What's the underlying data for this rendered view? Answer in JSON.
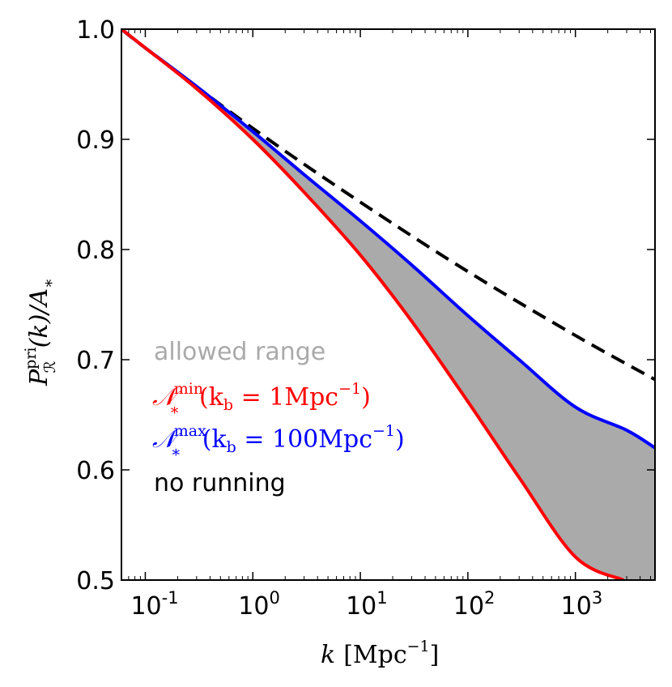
{
  "chart_data": {
    "type": "line",
    "xscale": "log",
    "xlim": [
      0.06,
      5500
    ],
    "ylim": [
      0.5,
      1.0
    ],
    "xlabel": {
      "italic": "k",
      "unit_main": "Mpc",
      "unit_exp": "−1"
    },
    "ylabel": {
      "P": "P",
      "sup": "pri",
      "sub": "ℛ",
      "rest": "(k)/A",
      "sub2": "∗"
    },
    "xticks": [
      {
        "value": 0.1,
        "base": "10",
        "exp": "-1"
      },
      {
        "value": 1,
        "base": "10",
        "exp": "0"
      },
      {
        "value": 10,
        "base": "10",
        "exp": "1"
      },
      {
        "value": 100,
        "base": "10",
        "exp": "2"
      },
      {
        "value": 1000,
        "base": "10",
        "exp": "3"
      }
    ],
    "yticks": [
      {
        "value": 0.5,
        "label": "0.5"
      },
      {
        "value": 0.6,
        "label": "0.6"
      },
      {
        "value": 0.7,
        "label": "0.7"
      },
      {
        "value": 0.8,
        "label": "0.8"
      },
      {
        "value": 0.9,
        "label": "0.9"
      },
      {
        "value": 1.0,
        "label": "1.0"
      }
    ],
    "series": [
      {
        "name": "no running",
        "color": "#000000",
        "style": "dashed",
        "x": [
          0.06,
          0.1,
          1,
          10,
          100,
          1000,
          5500
        ],
        "y": [
          1.0,
          0.983,
          0.91,
          0.843,
          0.78,
          0.722,
          0.682
        ]
      },
      {
        "name": "N_*^max (k_b = 100 Mpc^-1)",
        "color": "#0000ff",
        "style": "solid",
        "x": [
          0.06,
          0.1,
          0.3,
          1,
          3,
          10,
          30,
          100,
          300,
          1000,
          3000,
          5500
        ],
        "y": [
          1.0,
          0.983,
          0.948,
          0.907,
          0.868,
          0.826,
          0.786,
          0.74,
          0.7,
          0.657,
          0.636,
          0.62
        ]
      },
      {
        "name": "N_*^min (k_b = 1 Mpc^-1)",
        "color": "#ff0000",
        "style": "solid",
        "x": [
          0.06,
          0.1,
          0.3,
          1,
          3,
          10,
          30,
          100,
          300,
          1000,
          2800
        ],
        "y": [
          1.0,
          0.983,
          0.946,
          0.9,
          0.852,
          0.795,
          0.735,
          0.662,
          0.593,
          0.521,
          0.5
        ]
      }
    ],
    "shaded_region": {
      "label": "allowed range",
      "color": "#aaaaaa",
      "between": [
        "N_*^min (k_b = 1 Mpc^-1)",
        "N_*^max (k_b = 100 Mpc^-1)"
      ]
    },
    "legend": {
      "position": "center-left",
      "allowed_range": {
        "text": "allowed range",
        "color": "#aaaaaa"
      },
      "nmin": {
        "N": "𝒩",
        "sup": "min",
        "sub": "∗",
        "open": "(k",
        "b": "b",
        "mid": " = 1Mpc",
        "exp": "−1",
        "close": ")",
        "color": "#ff0000"
      },
      "nmax": {
        "N": "𝒩",
        "sup": "max",
        "sub": "∗",
        "open": "(k",
        "b": "b",
        "mid": " = 100Mpc",
        "exp": "−1",
        "close": ")",
        "color": "#0000ff"
      },
      "no_running": {
        "text": "no running",
        "color": "#000000"
      }
    }
  }
}
